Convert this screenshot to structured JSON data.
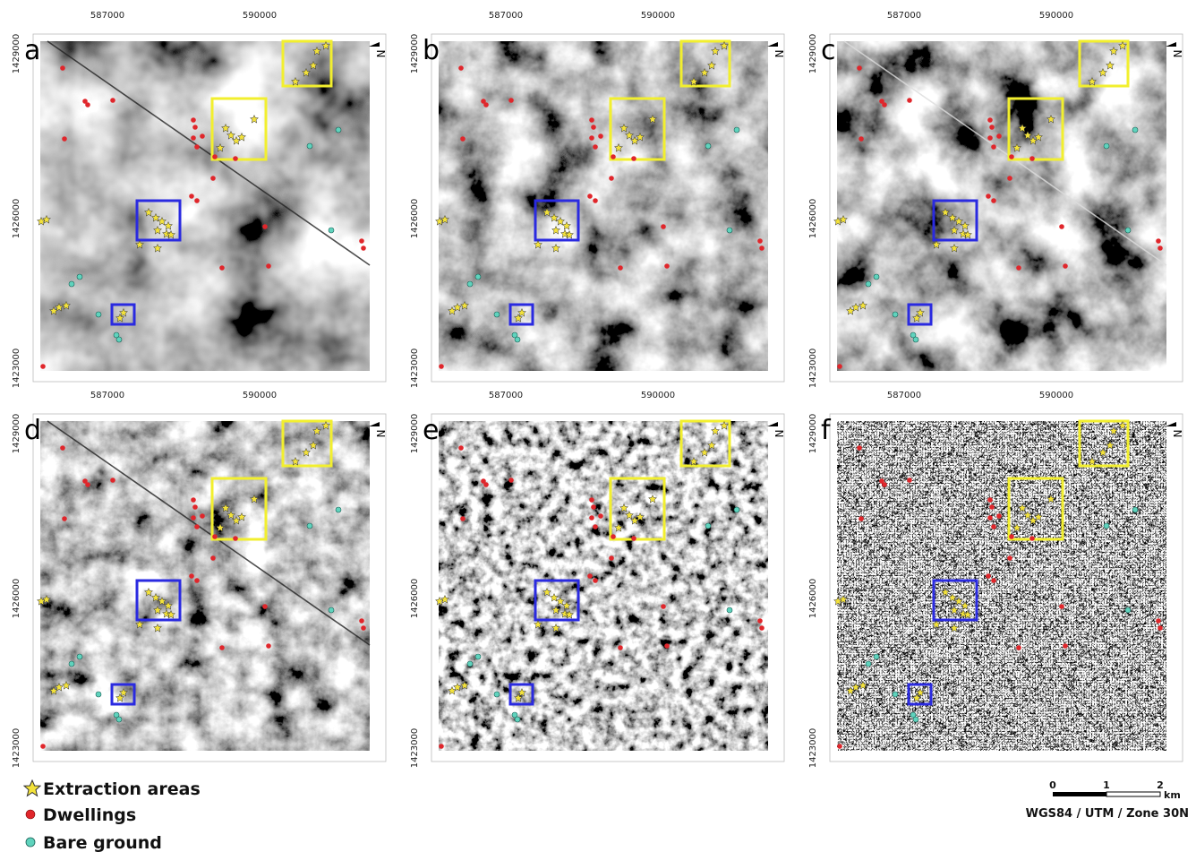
{
  "panels": [
    {
      "label": "a"
    },
    {
      "label": "b"
    },
    {
      "label": "c"
    },
    {
      "label": "d"
    },
    {
      "label": "e"
    },
    {
      "label": "f"
    }
  ],
  "x_tick_labels": [
    587000,
    590000
  ],
  "y_tick_labels": [
    1429000,
    1426000,
    1423000
  ],
  "north": "N",
  "legend": [
    "Extraction areas",
    "Dwellings",
    "Bare ground"
  ],
  "scale_bar": {
    "labels": [
      0,
      1,
      2
    ],
    "unit": "km"
  },
  "crs": "WGS84 / UTM / Zone 30N"
}
